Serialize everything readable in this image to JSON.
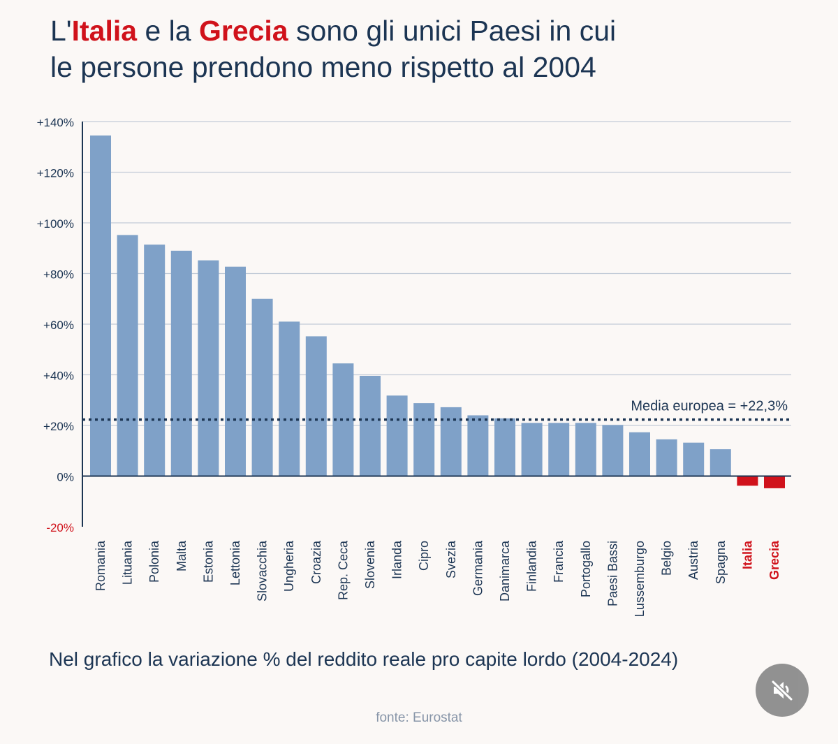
{
  "headline": {
    "line1_prefix": "L'",
    "line1_italia": "Italia",
    "line1_middle": " e la ",
    "line1_grecia": "Grecia",
    "line1_suffix": " sono gli unici Paesi in cui",
    "line2": "le persone prendono meno rispetto al 2004"
  },
  "subtitle": "Nel grafico la variazione % del reddito reale pro capite lordo (2004-2024)",
  "source": "fonte: Eurostat",
  "controls": {
    "mute_icon": "speaker-muted-icon"
  },
  "colors": {
    "bar": "#7fa1c8",
    "highlight": "#d0121b",
    "text": "#1c3553",
    "grid": "#c3ccd8",
    "average_line": "#1c3553"
  },
  "chart_data": {
    "type": "bar",
    "title": "",
    "xlabel": "",
    "ylabel": "",
    "ylim": [
      -20,
      140
    ],
    "y_ticks": [
      140,
      120,
      100,
      80,
      60,
      40,
      20,
      0,
      -20
    ],
    "y_tick_labels": [
      "+140%",
      "+120%",
      "+100%",
      "+80%",
      "+60%",
      "+40%",
      "+20%",
      "0%",
      "-20%"
    ],
    "grid": true,
    "categories": [
      "Romania",
      "Lituania",
      "Polonia",
      "Malta",
      "Estonia",
      "Lettonia",
      "Slovacchia",
      "Ungheria",
      "Croazia",
      "Rep. Ceca",
      "Slovenia",
      "Irlanda",
      "Cipro",
      "Svezia",
      "Germania",
      "Danimarca",
      "Finlandia",
      "Francia",
      "Portogallo",
      "Paesi Bassi",
      "Lussemburgo",
      "Belgio",
      "Austria",
      "Spagna",
      "Italia",
      "Grecia"
    ],
    "values": [
      134.5,
      95.2,
      91.4,
      89.0,
      85.2,
      82.7,
      70.0,
      61.0,
      55.2,
      44.5,
      39.6,
      31.8,
      28.8,
      27.2,
      24.0,
      22.8,
      21.0,
      21.0,
      21.0,
      20.2,
      17.3,
      14.5,
      13.2,
      10.6,
      -3.8,
      -4.8
    ],
    "highlighted": [
      "Italia",
      "Grecia"
    ],
    "average": {
      "value": 22.3,
      "label": "Media europea = +22,3%"
    }
  }
}
